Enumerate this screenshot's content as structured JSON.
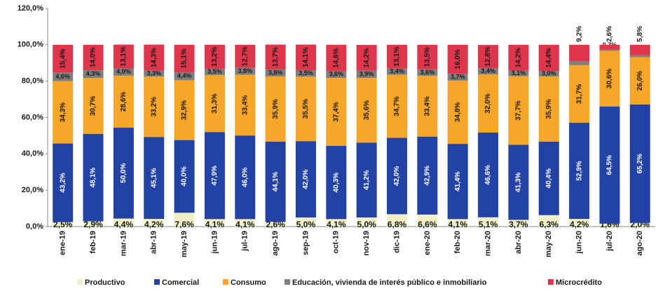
{
  "chart_data": {
    "type": "stacked_bar",
    "categories": [
      "ene-19",
      "feb-19",
      "mar-19",
      "abr-19",
      "may-19",
      "jun-19",
      "jul-19",
      "ago-19",
      "sep-19",
      "oct-19",
      "nov-19",
      "dic-19",
      "ene-20",
      "feb-20",
      "mar-20",
      "abr-20",
      "may-20",
      "jun-20",
      "jul-20",
      "ago-20"
    ],
    "series": [
      {
        "name": "Productivo",
        "color": "#f1efc6",
        "values": [
          2.5,
          2.9,
          4.4,
          4.2,
          7.6,
          4.1,
          4.1,
          2.6,
          5.0,
          4.1,
          5.0,
          6.8,
          6.6,
          4.1,
          5.1,
          3.7,
          6.3,
          4.2,
          1.6,
          2.0
        ],
        "value_labels": [
          "2,5%",
          "2,9%",
          "4,4%",
          "4,2%",
          "7,6%",
          "4,1%",
          "4,1%",
          "2,6%",
          "5,0%",
          "4,1%",
          "5,0%",
          "6,8%",
          "6,6%",
          "4,1%",
          "5,1%",
          "3,7%",
          "6,3%",
          "4,2%",
          "1,6%",
          "2,0%"
        ]
      },
      {
        "name": "Comercial",
        "color": "#2342a6",
        "values": [
          43.2,
          48.1,
          50.0,
          45.1,
          40.0,
          47.9,
          46.0,
          44.1,
          42.0,
          40.3,
          41.2,
          42.0,
          42.9,
          41.4,
          46.6,
          41.3,
          40.4,
          52.9,
          64.5,
          65.2
        ],
        "value_labels": [
          "43,2%",
          "48,1%",
          "50,0%",
          "45,1%",
          "40,0%",
          "47,9%",
          "46,0%",
          "44,1%",
          "42,0%",
          "40,3%",
          "41,2%",
          "42,0%",
          "42,9%",
          "41,4%",
          "46,6%",
          "41,3%",
          "40,4%",
          "52,9%",
          "64,5%",
          "65,2%"
        ]
      },
      {
        "name": "Consumo",
        "color": "#f7a628",
        "values": [
          34.3,
          30.7,
          28.6,
          33.2,
          32.9,
          31.3,
          33.4,
          35.9,
          35.5,
          37.4,
          35.6,
          34.7,
          33.4,
          34.8,
          32.0,
          37.7,
          35.9,
          31.7,
          30.6,
          26.0
        ],
        "value_labels": [
          "34,3%",
          "30,7%",
          "28,6%",
          "33,2%",
          "32,9%",
          "31,3%",
          "33,4%",
          "35,9%",
          "35,5%",
          "37,4%",
          "35,6%",
          "34,7%",
          "33,4%",
          "34,8%",
          "32,0%",
          "37,7%",
          "35,9%",
          "31,7%",
          "30,6%",
          "26,0%"
        ]
      },
      {
        "name": "Educación, vivienda de interés público e inmobiliario",
        "color": "#7f7f7f",
        "values": [
          4.6,
          4.3,
          4.0,
          3.3,
          4.4,
          3.5,
          3.8,
          3.8,
          3.5,
          3.6,
          3.9,
          3.4,
          3.6,
          3.7,
          3.4,
          3.1,
          3.0,
          2.0,
          0.7,
          1.0
        ],
        "value_labels": [
          "4,6%",
          "4,3%",
          "4,0%",
          "3,3%",
          "4,4%",
          "3,5%",
          "3,8%",
          "3,8%",
          "3,5%",
          "3,6%",
          "3,9%",
          "3,4%",
          "3,6%",
          "3,7%",
          "3,4%",
          "3,1%",
          "3,0%",
          "2,0%",
          "0,7%",
          "1,0%"
        ]
      },
      {
        "name": "Microcrédito",
        "color": "#e0364c",
        "values": [
          15.4,
          14.0,
          13.1,
          14.3,
          15.1,
          13.2,
          12.7,
          13.7,
          14.1,
          14.6,
          14.2,
          13.1,
          13.5,
          16.0,
          12.8,
          14.2,
          14.4,
          9.2,
          2.6,
          5.8
        ],
        "value_labels": [
          "15,4%",
          "14,0%",
          "13,1%",
          "14,3%",
          "15,1%",
          "13,2%",
          "12,7%",
          "13,7%",
          "14,1%",
          "14,6%",
          "14,2%",
          "13,1%",
          "13,5%",
          "16,0%",
          "12,8%",
          "14,2%",
          "14,4%",
          "9,2%",
          "2,6%",
          "5,8%"
        ]
      }
    ],
    "ylim": [
      0,
      120
    ],
    "yticks": [
      {
        "value": 0,
        "label": "0,0%"
      },
      {
        "value": 20,
        "label": "20,0%"
      },
      {
        "value": 40,
        "label": "40,0%"
      },
      {
        "value": 60,
        "label": "60,0%"
      },
      {
        "value": 80,
        "label": "80,0%"
      },
      {
        "value": 100,
        "label": "100,0%"
      },
      {
        "value": 120,
        "label": "120,0%"
      }
    ],
    "grid": false,
    "legend": "bottom"
  }
}
